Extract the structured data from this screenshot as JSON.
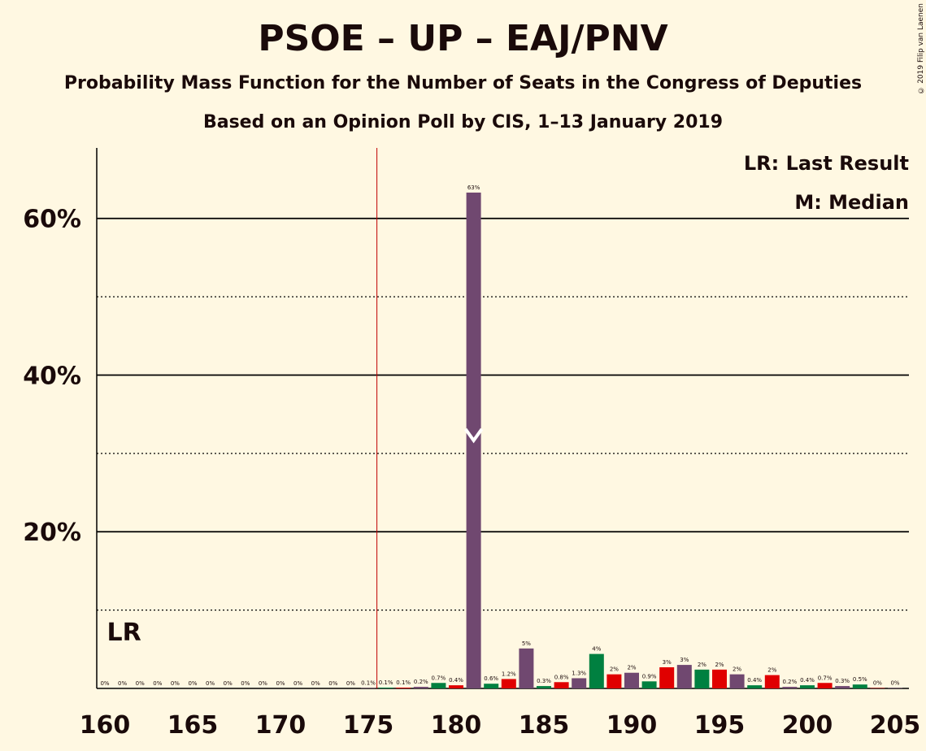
{
  "chart_data": {
    "type": "bar",
    "title": "PSOE – UP – EAJ/PNV",
    "subtitle": "Probability Mass Function for the Number of Seats in the Congress of Deputies",
    "subtitle2": "Based on an Opinion Poll by CIS, 1–13 January 2019",
    "credit": "© 2019 Filip van Laenen",
    "legend": [
      "LR: Last Result",
      "M: Median"
    ],
    "last_result_label": "LR",
    "last_result_seat": 161,
    "median_seat": 181,
    "majority_seat": 176,
    "xlim": [
      160,
      205
    ],
    "ylim": [
      0,
      69
    ],
    "xticks": [
      160,
      165,
      170,
      175,
      180,
      185,
      190,
      195,
      200,
      205
    ],
    "yticks": [
      {
        "value": 20,
        "label": "20%"
      },
      {
        "value": 40,
        "label": "40%"
      },
      {
        "value": 60,
        "label": "60%"
      }
    ],
    "dotted_lines": [
      10,
      30,
      50
    ],
    "colors": {
      "purple": "#704870",
      "green": "#008040",
      "red": "#E00000",
      "majority": "#C00000"
    },
    "x": [
      160,
      161,
      162,
      163,
      164,
      165,
      166,
      167,
      168,
      169,
      170,
      171,
      172,
      173,
      174,
      175,
      176,
      177,
      178,
      179,
      180,
      181,
      182,
      183,
      184,
      185,
      186,
      187,
      188,
      189,
      190,
      191,
      192,
      193,
      194,
      195,
      196,
      197,
      198,
      199,
      200,
      201,
      202,
      203,
      204,
      205
    ],
    "values": [
      0,
      0,
      0,
      0,
      0,
      0,
      0,
      0,
      0,
      0,
      0,
      0,
      0,
      0,
      0,
      0.05,
      0.1,
      0.1,
      0.2,
      0.7,
      0.4,
      63.3,
      0.6,
      1.2,
      5.1,
      0.3,
      0.8,
      1.3,
      4.4,
      1.8,
      2.0,
      0.9,
      2.7,
      3.0,
      2.4,
      2.4,
      1.8,
      0.4,
      1.7,
      0.2,
      0.4,
      0.7,
      0.3,
      0.5,
      0.05,
      0.05
    ],
    "labels": [
      "0%",
      "0%",
      "0%",
      "0%",
      "0%",
      "0%",
      "0%",
      "0%",
      "0%",
      "0%",
      "0%",
      "0%",
      "0%",
      "0%",
      "0%",
      "0.1%",
      "0.1%",
      "0.1%",
      "0.2%",
      "0.7%",
      "0.4%",
      "63%",
      "0.6%",
      "1.2%",
      "5%",
      "0.3%",
      "0.8%",
      "1.3%",
      "4%",
      "2%",
      "2%",
      "0.9%",
      "3%",
      "3%",
      "2%",
      "2%",
      "2%",
      "0.4%",
      "2%",
      "0.2%",
      "0.4%",
      "0.7%",
      "0.3%",
      "0.5%",
      "0%",
      "0%"
    ]
  }
}
